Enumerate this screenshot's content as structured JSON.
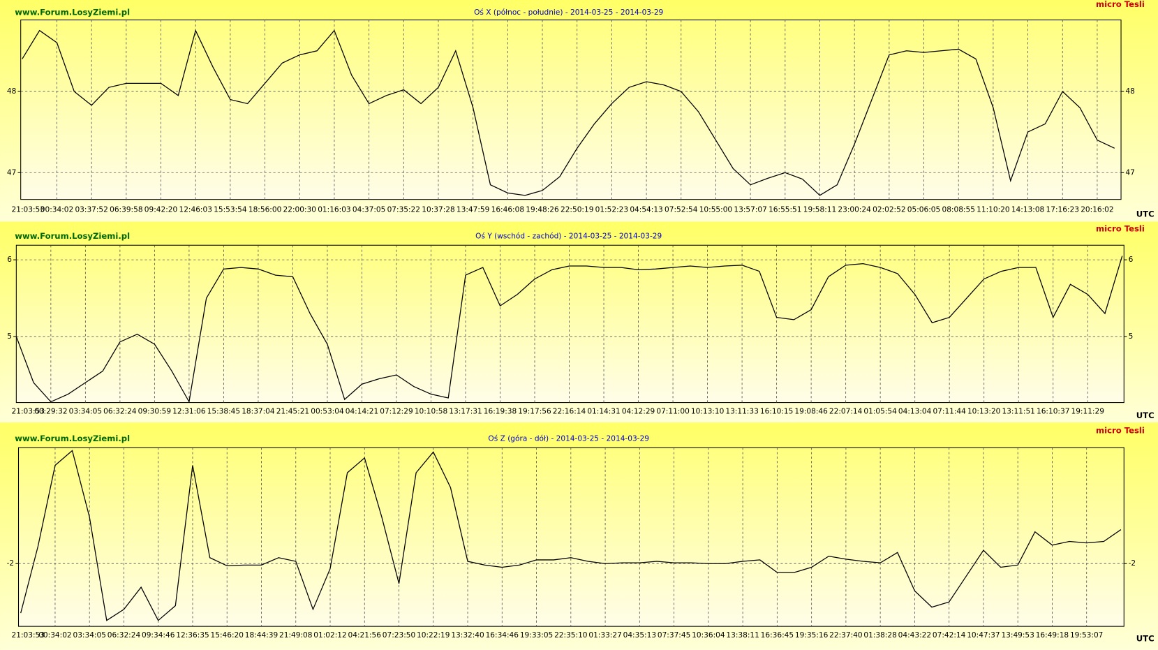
{
  "chart_data": [
    {
      "type": "line",
      "title": "Oś X (północ - południe) - 2014-03-25 - 2014-03-29",
      "watermark": "www.Forum.LosyZiemi.pl",
      "unit": "micro Tesli",
      "xlabel": "UTC",
      "color": "#000000",
      "grid": true,
      "categories": [
        "21:03:53",
        null,
        "00:34:02",
        null,
        "03:37:52",
        null,
        "06:39:58",
        null,
        "09:42:20",
        null,
        "12:46:03",
        null,
        "15:53:54",
        null,
        "18:56:00",
        null,
        "22:00:30",
        null,
        "01:16:03",
        null,
        "04:37:05",
        null,
        "07:35:22",
        null,
        "10:37:28",
        null,
        "13:47:59",
        null,
        "16:46:08",
        null,
        "19:48:26",
        null,
        "22:50:19",
        null,
        "01:52:23",
        null,
        "04:54:13",
        null,
        "07:52:54",
        null,
        "10:55:00",
        null,
        "13:57:07",
        null,
        "16:55:51",
        null,
        "19:58:11",
        null,
        "23:00:24",
        null,
        "02:02:52",
        null,
        "05:06:05",
        null,
        "08:08:55",
        null,
        "11:10:20",
        null,
        "14:13:08",
        null,
        "17:16:23",
        null,
        "20:16:02",
        null
      ],
      "values": [
        48.4,
        48.75,
        48.6,
        48.0,
        47.83,
        48.05,
        48.1,
        48.1,
        48.1,
        47.95,
        48.75,
        48.3,
        47.9,
        47.85,
        48.1,
        48.35,
        48.45,
        48.5,
        48.75,
        48.2,
        47.85,
        47.95,
        48.02,
        47.85,
        48.05,
        48.5,
        47.8,
        46.85,
        46.75,
        46.72,
        46.78,
        46.95,
        47.3,
        47.6,
        47.85,
        48.05,
        48.12,
        48.08,
        48.0,
        47.75,
        47.4,
        47.05,
        46.85,
        46.93,
        47.0,
        46.92,
        46.72,
        46.85,
        47.35,
        47.9,
        48.45,
        48.5,
        48.48,
        48.5,
        48.52,
        48.4,
        47.8,
        46.9,
        47.5,
        47.6,
        48.0,
        47.8,
        47.4,
        47.3
      ],
      "ylim": [
        46.67,
        48.88
      ],
      "yticks": [
        47,
        48
      ]
    },
    {
      "type": "line",
      "title": "Oś Y (wschód - zachód) - 2014-03-25 - 2014-03-29",
      "watermark": "www.Forum.LosyZiemi.pl",
      "unit": "micro Tesli",
      "xlabel": "UTC",
      "color": "#000000",
      "grid": true,
      "categories": [
        "21:03:53",
        null,
        "00:29:32",
        null,
        "03:34:05",
        null,
        "06:32:24",
        null,
        "09:30:59",
        null,
        "12:31:06",
        null,
        "15:38:45",
        null,
        "18:37:04",
        null,
        "21:45:21",
        null,
        "00:53:04",
        null,
        "04:14:21",
        null,
        "07:12:29",
        null,
        "10:10:58",
        null,
        "13:17:31",
        null,
        "16:19:38",
        null,
        "19:17:56",
        null,
        "22:16:14",
        null,
        "01:14:31",
        null,
        "04:12:29",
        null,
        "07:11:00",
        null,
        "10:13:10",
        null,
        "13:11:33",
        null,
        "16:10:15",
        null,
        "19:08:46",
        null,
        "22:07:14",
        null,
        "01:05:54",
        null,
        "04:13:04",
        null,
        "07:11:44",
        null,
        "10:13:20",
        null,
        "13:11:51",
        null,
        "16:10:37",
        null,
        "19:11:29",
        null,
        null
      ],
      "values": [
        5.0,
        4.4,
        4.15,
        4.25,
        4.4,
        4.55,
        4.93,
        5.03,
        4.9,
        4.55,
        4.15,
        5.5,
        5.88,
        5.9,
        5.88,
        5.8,
        5.78,
        5.3,
        4.9,
        4.18,
        4.38,
        4.45,
        4.5,
        4.35,
        4.25,
        4.2,
        5.8,
        5.9,
        5.4,
        5.55,
        5.75,
        5.87,
        5.92,
        5.92,
        5.9,
        5.9,
        5.87,
        5.88,
        5.9,
        5.92,
        5.9,
        5.92,
        5.93,
        5.85,
        5.25,
        5.22,
        5.35,
        5.78,
        5.93,
        5.95,
        5.9,
        5.82,
        5.55,
        5.18,
        5.25,
        5.5,
        5.75,
        5.85,
        5.9,
        5.9,
        5.25,
        5.68,
        5.55,
        5.3,
        6.05
      ],
      "ylim": [
        4.14,
        6.19
      ],
      "yticks": [
        5,
        6
      ]
    },
    {
      "type": "line",
      "title": "Oś Z (góra - dół) - 2014-03-25 - 2014-03-29",
      "watermark": "www.Forum.LosyZiemi.pl",
      "unit": "micro Tesli",
      "xlabel": "UTC",
      "color": "#000000",
      "grid": true,
      "categories": [
        "21:03:53",
        null,
        "00:34:02",
        null,
        "03:34:05",
        null,
        "06:32:24",
        null,
        "09:34:46",
        null,
        "12:36:35",
        null,
        "15:46:20",
        null,
        "18:44:39",
        null,
        "21:49:08",
        null,
        "01:02:12",
        null,
        "04:21:56",
        null,
        "07:23:50",
        null,
        "10:22:19",
        null,
        "13:32:40",
        null,
        "16:34:46",
        null,
        "19:33:05",
        null,
        "22:35:10",
        null,
        "01:33:27",
        null,
        "04:35:13",
        null,
        "07:37:45",
        null,
        "10:36:04",
        null,
        "13:38:11",
        null,
        "16:36:45",
        null,
        "19:35:16",
        null,
        "22:37:40",
        null,
        "01:38:28",
        null,
        "04:43:22",
        null,
        "07:42:14",
        null,
        "10:47:37",
        null,
        "13:49:53",
        null,
        "16:49:18",
        null,
        "19:53:07",
        null,
        null
      ],
      "values": [
        -2.67,
        -1.77,
        -0.67,
        -0.47,
        -1.37,
        -2.77,
        -2.62,
        -2.32,
        -2.77,
        -2.57,
        -0.67,
        -1.92,
        -2.03,
        -2.02,
        -2.02,
        -1.92,
        -1.97,
        -2.62,
        -2.07,
        -0.77,
        -0.57,
        -1.37,
        -2.27,
        -0.77,
        -0.49,
        -0.97,
        -1.97,
        -2.02,
        -2.05,
        -2.02,
        -1.95,
        -1.95,
        -1.92,
        -1.97,
        -2.0,
        -1.99,
        -1.99,
        -1.97,
        -1.99,
        -1.99,
        -2.0,
        -2.0,
        -1.97,
        -1.95,
        -2.12,
        -2.12,
        -2.05,
        -1.9,
        -1.94,
        -1.97,
        -1.99,
        -1.85,
        -2.37,
        -2.59,
        -2.52,
        -2.17,
        -1.82,
        -2.05,
        -2.02,
        -1.57,
        -1.75,
        -1.7,
        -1.72,
        -1.7,
        -1.54
      ],
      "ylim": [
        -2.85,
        -0.43
      ],
      "yticks": [
        -2
      ]
    }
  ]
}
